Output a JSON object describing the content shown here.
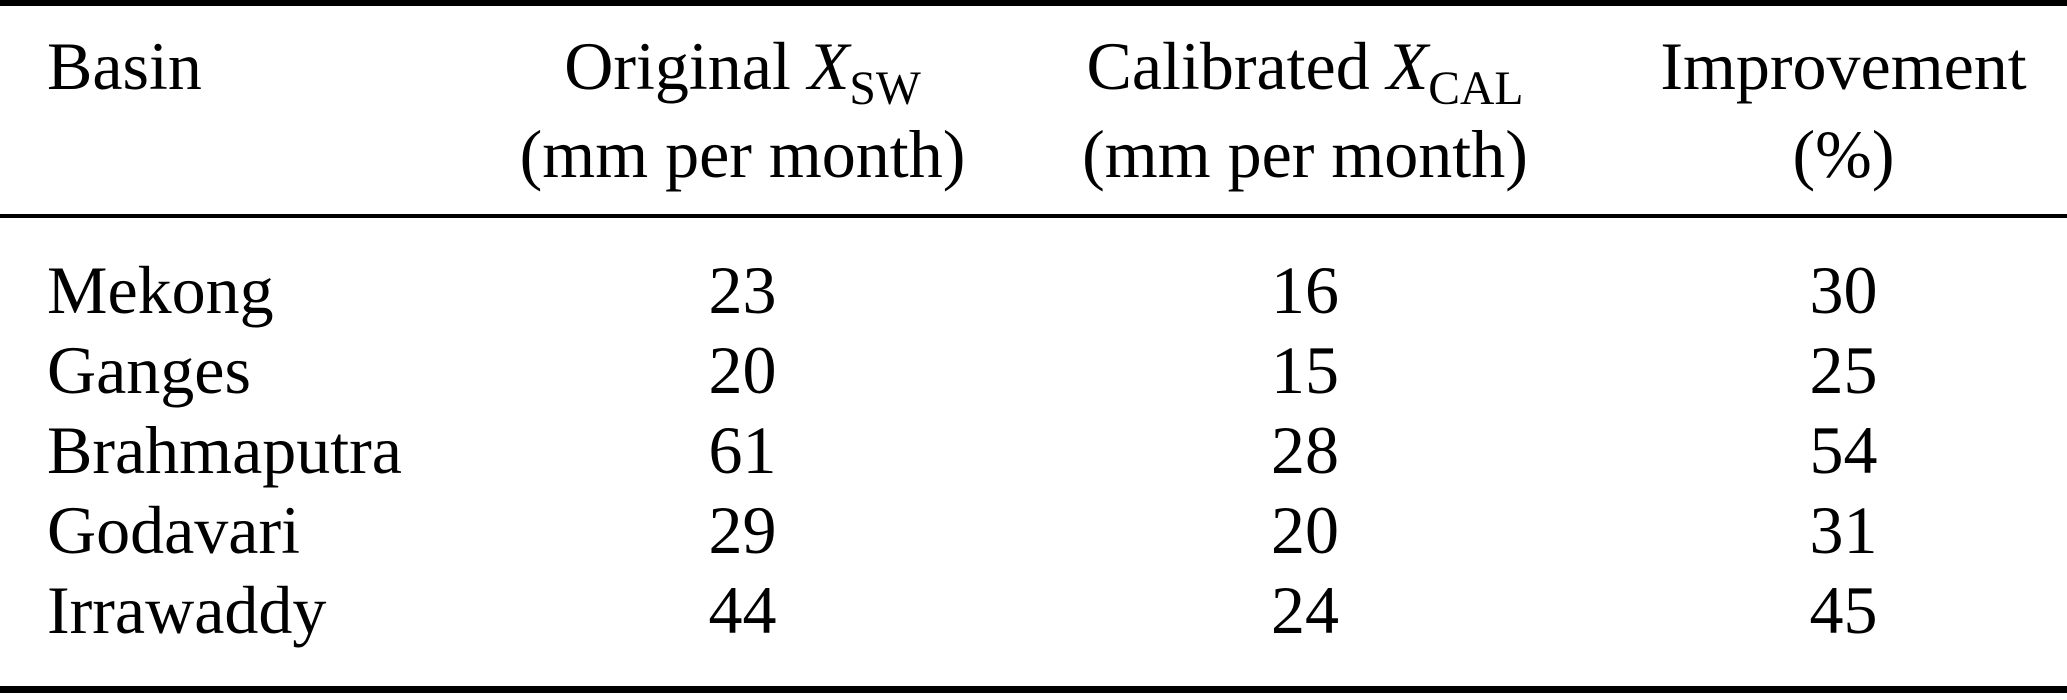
{
  "page": {
    "background": "#ffffff",
    "text_color": "#000000",
    "rule_color": "#000000"
  },
  "table": {
    "columns": [
      {
        "label": "Basin",
        "var": "",
        "sub": "",
        "unit": ""
      },
      {
        "label": "Original ",
        "var": "X",
        "sub": "SW",
        "unit": "(mm per month)"
      },
      {
        "label": "Calibrated ",
        "var": "X",
        "sub": "CAL",
        "unit": "(mm per month)"
      },
      {
        "label": "Improvement",
        "var": "",
        "sub": "",
        "unit": "(%)"
      }
    ],
    "rows": [
      {
        "basin": "Mekong",
        "original": "23",
        "calibrated": "16",
        "improvement": "30"
      },
      {
        "basin": "Ganges",
        "original": "20",
        "calibrated": "15",
        "improvement": "25"
      },
      {
        "basin": "Brahmaputra",
        "original": "61",
        "calibrated": "28",
        "improvement": "54"
      },
      {
        "basin": "Godavari",
        "original": "29",
        "calibrated": "20",
        "improvement": "31"
      },
      {
        "basin": "Irrawaddy",
        "original": "44",
        "calibrated": "24",
        "improvement": "45"
      }
    ]
  }
}
